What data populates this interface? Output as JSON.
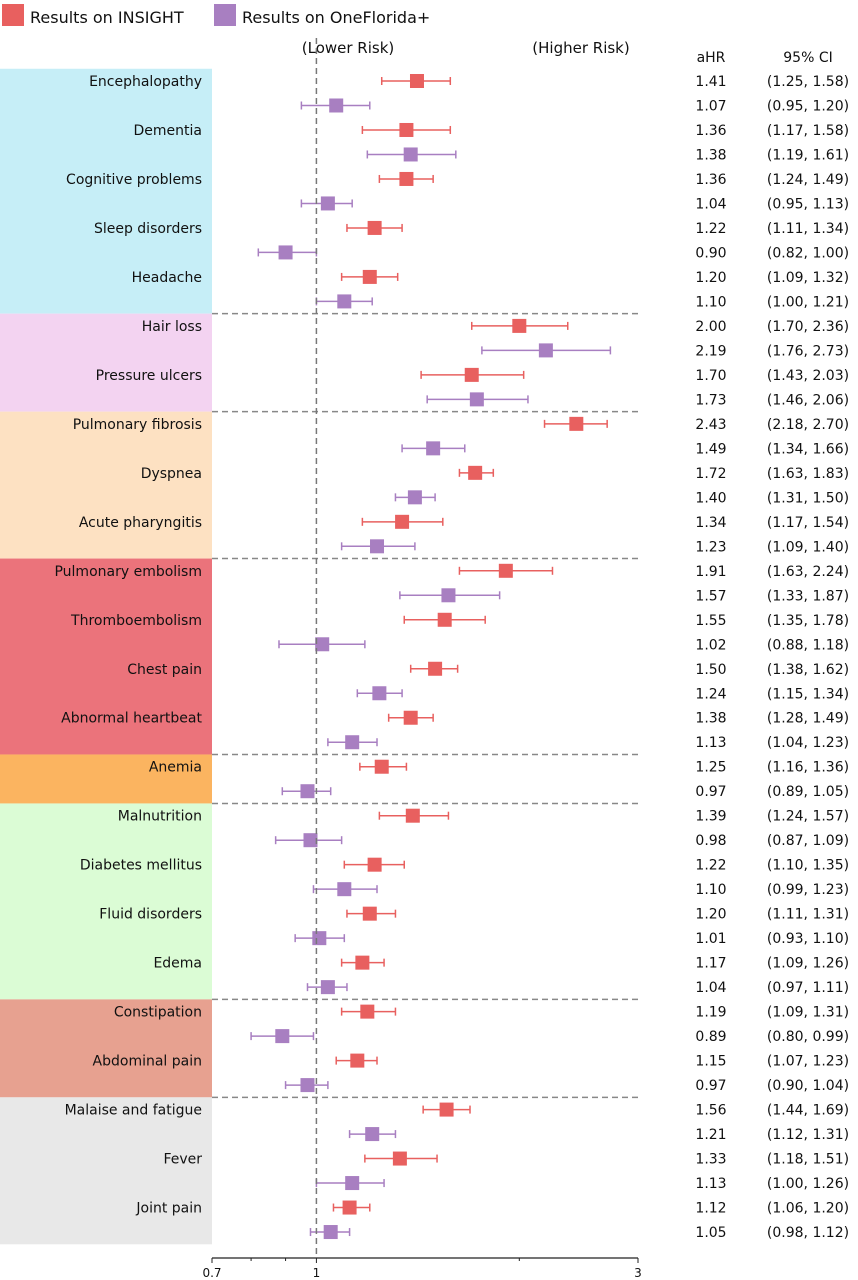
{
  "chart_data": {
    "type": "forest",
    "scale": "log",
    "xlim": [
      0.7,
      3
    ],
    "xticks": [
      0.7,
      0.8,
      0.9,
      1,
      2,
      3
    ],
    "xtick_labels": [
      "0.7",
      "",
      "",
      "1",
      "",
      "3"
    ],
    "reference_line": 1,
    "annotations": {
      "lower": "(Lower Risk)",
      "higher": "(Higher Risk)"
    },
    "columns": {
      "ahr": "aHR",
      "ci": "95% CI"
    },
    "legend": [
      {
        "name": "Results on INSIGHT",
        "color": "#e8605f"
      },
      {
        "name": "Results on OneFlorida+",
        "color": "#a87fc1"
      }
    ],
    "legend_position": "top-left",
    "groups": [
      {
        "color": "#c6eef7",
        "outcomes": [
          {
            "label": "Encephalopathy",
            "insight": [
              1.41,
              1.25,
              1.58
            ],
            "oneflorida": [
              1.07,
              0.95,
              1.2
            ]
          },
          {
            "label": "Dementia",
            "insight": [
              1.36,
              1.17,
              1.58
            ],
            "oneflorida": [
              1.38,
              1.19,
              1.61
            ]
          },
          {
            "label": "Cognitive problems",
            "insight": [
              1.36,
              1.24,
              1.49
            ],
            "oneflorida": [
              1.04,
              0.95,
              1.13
            ]
          },
          {
            "label": "Sleep disorders",
            "insight": [
              1.22,
              1.11,
              1.34
            ],
            "oneflorida": [
              0.9,
              0.82,
              1.0
            ]
          },
          {
            "label": "Headache",
            "insight": [
              1.2,
              1.09,
              1.32
            ],
            "oneflorida": [
              1.1,
              1.0,
              1.21
            ]
          }
        ]
      },
      {
        "color": "#f3d3f1",
        "outcomes": [
          {
            "label": "Hair loss",
            "insight": [
              2.0,
              1.7,
              2.36
            ],
            "oneflorida": [
              2.19,
              1.76,
              2.73
            ]
          },
          {
            "label": "Pressure ulcers",
            "insight": [
              1.7,
              1.43,
              2.03
            ],
            "oneflorida": [
              1.73,
              1.46,
              2.06
            ]
          }
        ]
      },
      {
        "color": "#fde1c2",
        "outcomes": [
          {
            "label": "Pulmonary fibrosis",
            "insight": [
              2.43,
              2.18,
              2.7
            ],
            "oneflorida": [
              1.49,
              1.34,
              1.66
            ]
          },
          {
            "label": "Dyspnea",
            "insight": [
              1.72,
              1.63,
              1.83
            ],
            "oneflorida": [
              1.4,
              1.31,
              1.5
            ]
          },
          {
            "label": "Acute pharyngitis",
            "insight": [
              1.34,
              1.17,
              1.54
            ],
            "oneflorida": [
              1.23,
              1.09,
              1.4
            ]
          }
        ]
      },
      {
        "color": "#eb737b",
        "outcomes": [
          {
            "label": "Pulmonary embolism",
            "insight": [
              1.91,
              1.63,
              2.24
            ],
            "oneflorida": [
              1.57,
              1.33,
              1.87
            ]
          },
          {
            "label": "Thromboembolism",
            "insight": [
              1.55,
              1.35,
              1.78
            ],
            "oneflorida": [
              1.02,
              0.88,
              1.18
            ]
          },
          {
            "label": "Chest pain",
            "insight": [
              1.5,
              1.38,
              1.62
            ],
            "oneflorida": [
              1.24,
              1.15,
              1.34
            ]
          },
          {
            "label": "Abnormal heartbeat",
            "insight": [
              1.38,
              1.28,
              1.49
            ],
            "oneflorida": [
              1.13,
              1.04,
              1.23
            ]
          }
        ]
      },
      {
        "color": "#fbb460",
        "outcomes": [
          {
            "label": "Anemia",
            "insight": [
              1.25,
              1.16,
              1.36
            ],
            "oneflorida": [
              0.97,
              0.89,
              1.05
            ]
          }
        ]
      },
      {
        "color": "#dbfcd5",
        "outcomes": [
          {
            "label": "Malnutrition",
            "insight": [
              1.39,
              1.24,
              1.57
            ],
            "oneflorida": [
              0.98,
              0.87,
              1.09
            ]
          },
          {
            "label": "Diabetes mellitus",
            "insight": [
              1.22,
              1.1,
              1.35
            ],
            "oneflorida": [
              1.1,
              0.99,
              1.23
            ]
          },
          {
            "label": "Fluid disorders",
            "insight": [
              1.2,
              1.11,
              1.31
            ],
            "oneflorida": [
              1.01,
              0.93,
              1.1
            ]
          },
          {
            "label": "Edema",
            "insight": [
              1.17,
              1.09,
              1.26
            ],
            "oneflorida": [
              1.04,
              0.97,
              1.11
            ]
          }
        ]
      },
      {
        "color": "#e7a190",
        "outcomes": [
          {
            "label": "Constipation",
            "insight": [
              1.19,
              1.09,
              1.31
            ],
            "oneflorida": [
              0.89,
              0.8,
              0.99
            ]
          },
          {
            "label": "Abdominal pain",
            "insight": [
              1.15,
              1.07,
              1.23
            ],
            "oneflorida": [
              0.97,
              0.9,
              1.04
            ]
          }
        ]
      },
      {
        "color": "#e8e8e8",
        "outcomes": [
          {
            "label": "Malaise and fatigue",
            "insight": [
              1.56,
              1.44,
              1.69
            ],
            "oneflorida": [
              1.21,
              1.12,
              1.31
            ]
          },
          {
            "label": "Fever",
            "insight": [
              1.33,
              1.18,
              1.51
            ],
            "oneflorida": [
              1.13,
              1.0,
              1.26
            ]
          },
          {
            "label": "Joint pain",
            "insight": [
              1.12,
              1.06,
              1.2
            ],
            "oneflorida": [
              1.05,
              0.98,
              1.12
            ]
          }
        ]
      }
    ]
  }
}
